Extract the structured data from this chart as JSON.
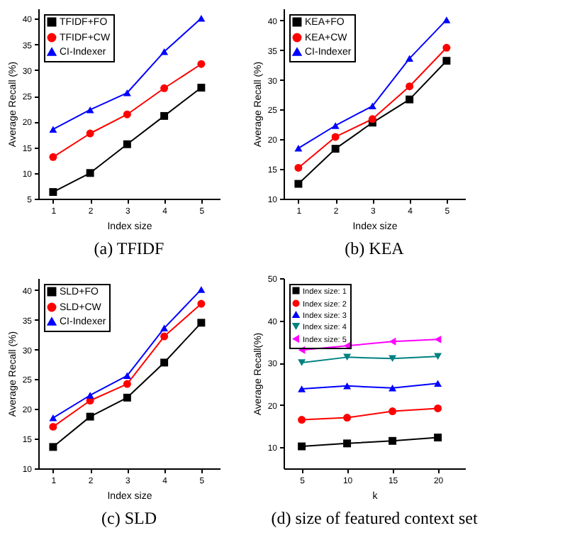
{
  "chart_data": [
    {
      "type": "line",
      "title": "(a) TFIDF",
      "xlabel": "Index size",
      "ylabel": "Average Recall (%)",
      "x": [
        1,
        2,
        3,
        4,
        5
      ],
      "xlim": [
        0.6,
        5.5
      ],
      "xticks": [
        1,
        2,
        3,
        4,
        5
      ],
      "ylim": [
        5,
        42
      ],
      "yticks": [
        5,
        10,
        15,
        20,
        25,
        30,
        35,
        40
      ],
      "legend": "top left",
      "grid": false,
      "series": [
        {
          "name": "TFIDF+FO",
          "color": "#000000",
          "marker": "square",
          "values": [
            6.3,
            10,
            15.6,
            21.1,
            26.6
          ]
        },
        {
          "name": "TFIDF+CW",
          "color": "#ff0000",
          "marker": "circle",
          "values": [
            13.1,
            17.7,
            21.4,
            26.5,
            31.2
          ]
        },
        {
          "name": "CI-Indexer",
          "color": "#0000ff",
          "marker": "triangle",
          "values": [
            18.5,
            22.3,
            25.6,
            33.6,
            40.1
          ]
        }
      ]
    },
    {
      "type": "line",
      "title": "(b) KEA",
      "xlabel": "Index size",
      "ylabel": "Average Recall (%)",
      "x": [
        1,
        2,
        3,
        4,
        5
      ],
      "xlim": [
        0.6,
        5.5
      ],
      "xticks": [
        1,
        2,
        3,
        4,
        5
      ],
      "ylim": [
        10,
        42
      ],
      "yticks": [
        10,
        15,
        20,
        25,
        30,
        35,
        40
      ],
      "legend": "top left",
      "grid": false,
      "series": [
        {
          "name": "KEA+FO",
          "color": "#000000",
          "marker": "square",
          "values": [
            12.5,
            18.4,
            22.8,
            26.7,
            33.2
          ]
        },
        {
          "name": "KEA+CW",
          "color": "#ff0000",
          "marker": "circle",
          "values": [
            15.2,
            20.4,
            23.4,
            28.9,
            35.4
          ]
        },
        {
          "name": "CI-Indexer",
          "color": "#0000ff",
          "marker": "triangle",
          "values": [
            18.5,
            22.3,
            25.6,
            33.6,
            40.1
          ]
        }
      ]
    },
    {
      "type": "line",
      "title": "(c) SLD",
      "xlabel": "Index size",
      "ylabel": "Average Recall (%)",
      "x": [
        1,
        2,
        3,
        4,
        5
      ],
      "xlim": [
        0.6,
        5.5
      ],
      "xticks": [
        1,
        2,
        3,
        4,
        5
      ],
      "ylim": [
        10,
        42
      ],
      "yticks": [
        10,
        15,
        20,
        25,
        30,
        35,
        40
      ],
      "legend": "top left",
      "grid": false,
      "series": [
        {
          "name": "SLD+FO",
          "color": "#000000",
          "marker": "square",
          "values": [
            13.6,
            18.7,
            21.9,
            27.8,
            34.5
          ]
        },
        {
          "name": "SLD+CW",
          "color": "#ff0000",
          "marker": "circle",
          "values": [
            17,
            21.4,
            24.2,
            32.2,
            37.7
          ]
        },
        {
          "name": "CI-Indexer",
          "color": "#0000ff",
          "marker": "triangle",
          "values": [
            18.5,
            22.3,
            25.6,
            33.6,
            40.1
          ]
        }
      ]
    },
    {
      "type": "line",
      "title": "(d) size of featured context set",
      "xlabel": "k",
      "ylabel": "Average Recall(%)",
      "x": [
        5,
        10,
        15,
        20
      ],
      "xlim": [
        3,
        23
      ],
      "xticks": [
        5,
        10,
        15,
        20
      ],
      "ylim": [
        5,
        50
      ],
      "yticks": [
        10,
        20,
        30,
        40,
        50
      ],
      "legend": "top left",
      "grid": false,
      "series": [
        {
          "name": "Index size: 1",
          "color": "#000000",
          "marker": "square",
          "values": [
            10.2,
            10.9,
            11.5,
            12.3
          ]
        },
        {
          "name": "Index size: 2",
          "color": "#ff0000",
          "marker": "circle",
          "values": [
            16.5,
            17,
            18.5,
            19.2
          ]
        },
        {
          "name": "Index size: 3",
          "color": "#0000ff",
          "marker": "triangle",
          "values": [
            23.8,
            24.5,
            24,
            25.1
          ]
        },
        {
          "name": "Index size: 4",
          "color": "#008080",
          "marker": "triangle-down",
          "values": [
            30,
            31.3,
            31,
            31.5
          ]
        },
        {
          "name": "Index size: 5",
          "color": "#ff00ff",
          "marker": "triangle-left",
          "values": [
            33,
            34,
            35,
            35.5
          ]
        }
      ]
    }
  ]
}
